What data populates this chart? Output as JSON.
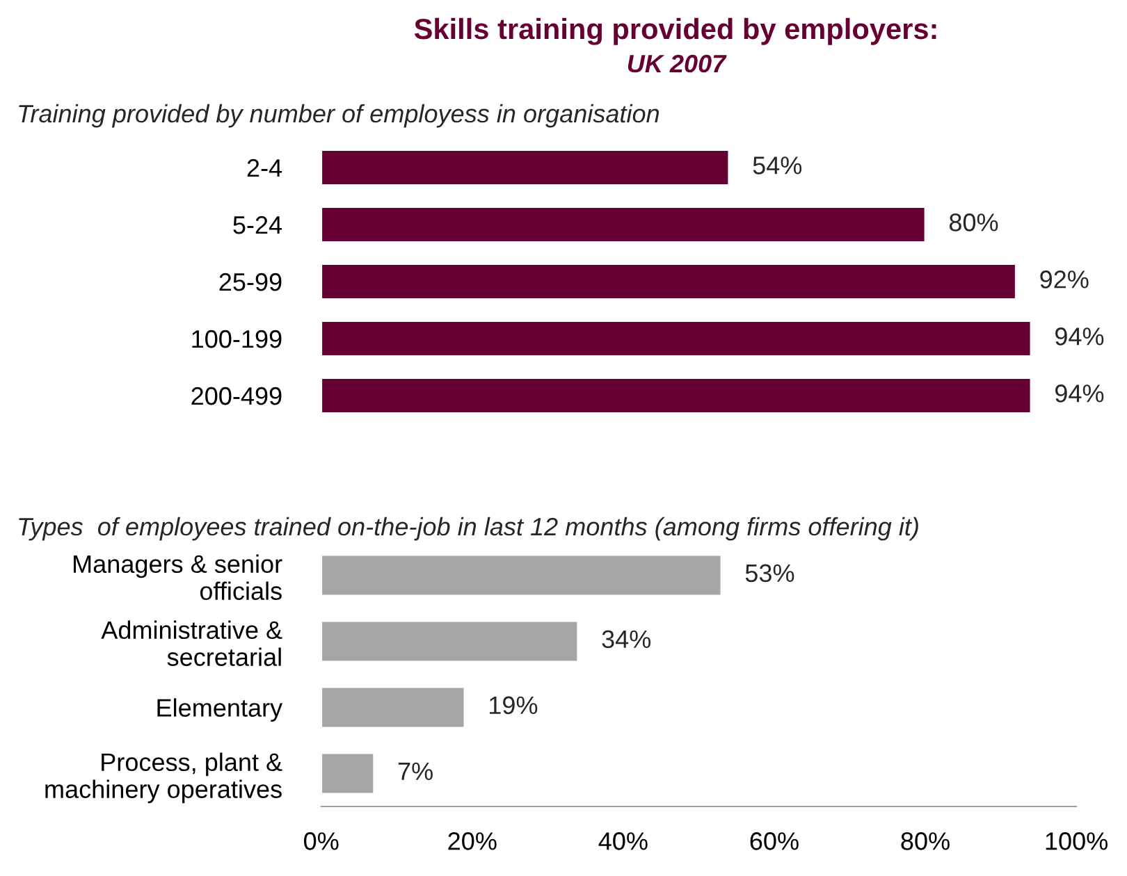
{
  "chart_data": [
    {
      "type": "bar",
      "orientation": "horizontal",
      "title": "Skills training provided by employers:",
      "subtitle": "UK 2007",
      "annotations": [
        "Training provided by number of employess in organisation"
      ],
      "categories": [
        "2-4",
        "5-24",
        "25-99",
        "100-199",
        "200-499"
      ],
      "values": [
        54,
        80,
        92,
        94,
        94
      ],
      "color": "#660033",
      "value_labels": [
        "54%",
        "80%",
        "92%",
        "94%",
        "94%"
      ],
      "xlim": [
        0,
        100
      ],
      "tick_labels": "y",
      "grid": false,
      "legend": false
    },
    {
      "type": "bar",
      "orientation": "horizontal",
      "title": "Types  of employees trained on-the-job in last 12 months (among firms offering it)",
      "categories": [
        "Managers & senior\nofficials",
        "Administrative &\nsecretarial",
        "Elementary",
        "Process, plant &\nmachinery operatives"
      ],
      "values": [
        53,
        34,
        19,
        7
      ],
      "color": "#a6a6a6",
      "value_labels": [
        "53%",
        "34%",
        "19%",
        "7%"
      ],
      "xlim": [
        0,
        100
      ],
      "xticks": [
        {
          "value": 0,
          "label": "0%"
        },
        {
          "value": 20,
          "label": "20%"
        },
        {
          "value": 40,
          "label": "40%"
        },
        {
          "value": 60,
          "label": "60%"
        },
        {
          "value": 80,
          "label": "80%"
        },
        {
          "value": 100,
          "label": "100%"
        }
      ],
      "grid": false,
      "legend": false
    }
  ]
}
